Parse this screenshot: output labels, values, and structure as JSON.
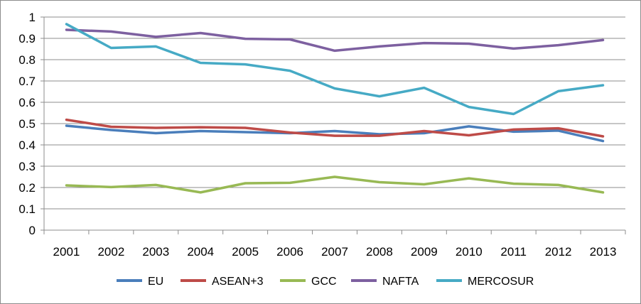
{
  "chart_data": {
    "type": "line",
    "title": "",
    "xlabel": "",
    "ylabel": "",
    "categories": [
      "2001",
      "2002",
      "2003",
      "2004",
      "2005",
      "2006",
      "2007",
      "2008",
      "2009",
      "2010",
      "2011",
      "2012",
      "2013"
    ],
    "ylim": [
      0,
      1
    ],
    "yticks": [
      "0",
      "0.1",
      "0.2",
      "0.3",
      "0.4",
      "0.5",
      "0.6",
      "0.7",
      "0.8",
      "0.9",
      "1"
    ],
    "grid": "horizontal",
    "legend_position": "bottom",
    "series": [
      {
        "name": "EU",
        "color": "#4a7ebb",
        "values": [
          0.49,
          0.47,
          0.455,
          0.465,
          0.46,
          0.455,
          0.465,
          0.45,
          0.455,
          0.487,
          0.462,
          0.467,
          0.418
        ]
      },
      {
        "name": "ASEAN+3",
        "color": "#be4b48",
        "values": [
          0.518,
          0.485,
          0.48,
          0.483,
          0.48,
          0.458,
          0.443,
          0.443,
          0.465,
          0.445,
          0.472,
          0.478,
          0.44
        ]
      },
      {
        "name": "GCC",
        "color": "#98b954",
        "values": [
          0.21,
          0.202,
          0.212,
          0.177,
          0.22,
          0.222,
          0.25,
          0.225,
          0.215,
          0.243,
          0.218,
          0.212,
          0.177
        ]
      },
      {
        "name": "NAFTA",
        "color": "#7d60a0",
        "values": [
          0.94,
          0.932,
          0.907,
          0.925,
          0.898,
          0.895,
          0.842,
          0.862,
          0.878,
          0.875,
          0.852,
          0.868,
          0.892
        ]
      },
      {
        "name": "MERCOSUR",
        "color": "#46aac5",
        "values": [
          0.967,
          0.855,
          0.862,
          0.785,
          0.778,
          0.748,
          0.665,
          0.628,
          0.668,
          0.578,
          0.545,
          0.652,
          0.68
        ]
      }
    ]
  }
}
